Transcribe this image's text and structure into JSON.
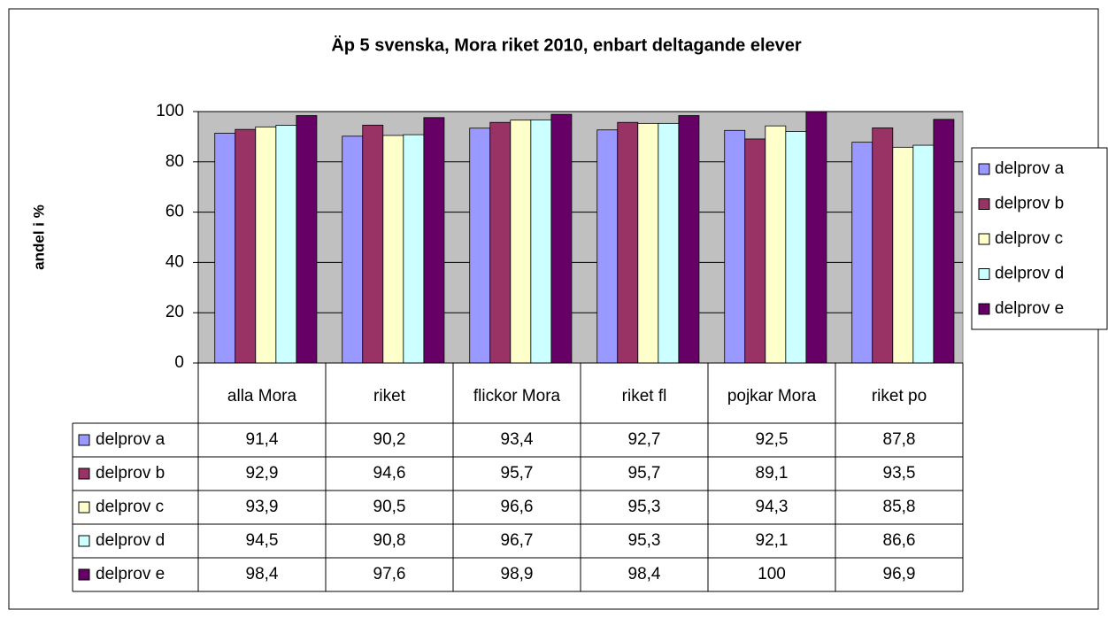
{
  "chart_data": {
    "type": "bar",
    "title": "Äp 5 svenska, Mora riket 2010, enbart deltagande elever",
    "y_label": "andel i %",
    "categories": [
      "alla Mora",
      "riket",
      "flickor Mora",
      "riket fl",
      "pojkar Mora",
      "riket po"
    ],
    "series": [
      {
        "name": "delprov a",
        "color": "#9999ff",
        "values": [
          91.4,
          90.2,
          93.4,
          92.7,
          92.5,
          87.8
        ],
        "value_labels": [
          "91,4",
          "90,2",
          "93,4",
          "92,7",
          "92,5",
          "87,8"
        ]
      },
      {
        "name": "delprov b",
        "color": "#993366",
        "values": [
          92.9,
          94.6,
          95.7,
          95.7,
          89.1,
          93.5
        ],
        "value_labels": [
          "92,9",
          "94,6",
          "95,7",
          "95,7",
          "89,1",
          "93,5"
        ]
      },
      {
        "name": "delprov c",
        "color": "#ffffcc",
        "values": [
          93.9,
          90.5,
          96.6,
          95.3,
          94.3,
          85.8
        ],
        "value_labels": [
          "93,9",
          "90,5",
          "96,6",
          "95,3",
          "94,3",
          "85,8"
        ]
      },
      {
        "name": "delprov d",
        "color": "#ccffff",
        "values": [
          94.5,
          90.8,
          96.7,
          95.3,
          92.1,
          86.6
        ],
        "value_labels": [
          "94,5",
          "90,8",
          "96,7",
          "95,3",
          "92,1",
          "86,6"
        ]
      },
      {
        "name": "delprov e",
        "color": "#660066",
        "values": [
          98.4,
          97.6,
          98.9,
          98.4,
          100,
          96.9
        ],
        "value_labels": [
          "98,4",
          "97,6",
          "98,9",
          "98,4",
          "100",
          "96,9"
        ]
      }
    ],
    "ylim": [
      0,
      100
    ],
    "yticks": [
      0,
      20,
      40,
      60,
      80,
      100
    ],
    "grid": true,
    "legend": "right"
  }
}
